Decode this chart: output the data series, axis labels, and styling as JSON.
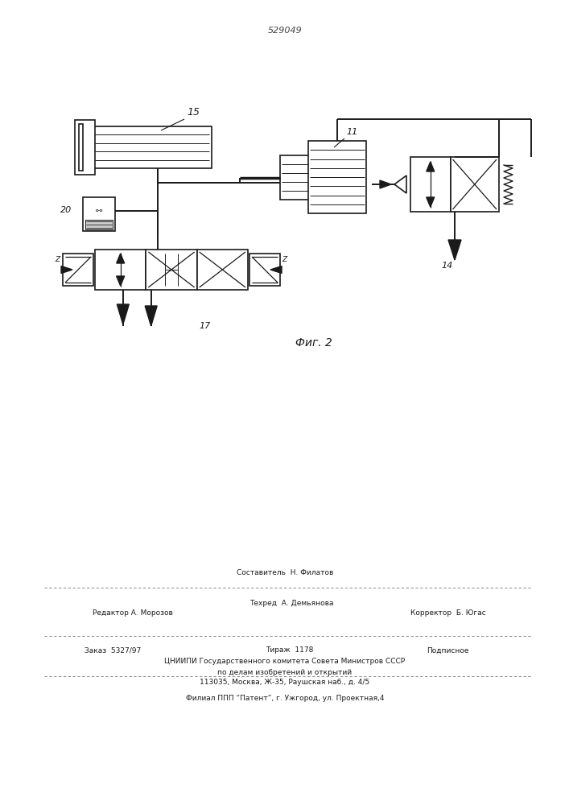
{
  "bg_color": "#ffffff",
  "line_color": "#1a1a1a",
  "title_text": "529049",
  "fig_label": "Фиг. 2",
  "footer": {
    "sostavitel": "Составитель  Н. Филатов",
    "redaktor": "Редактор А. Морозов",
    "tehred": "Техред  А. Демьянова",
    "korrektor": "Корректор  Б. Югас",
    "zakaz": "Заказ  5327/97",
    "tirazh": "Тираж  1178",
    "podpisnoe": "Подписное",
    "cniip1": "ЦНИИПИ Государственного комитета Совета Министров СССР",
    "cniip2": "по делам изобретений и открытий",
    "address": "113035, Москва, Ж-35, Раушская наб., д. 4/5",
    "filial": "Филиал ППП “Патент”, г. Ужгород, ул. Проектная,4"
  }
}
